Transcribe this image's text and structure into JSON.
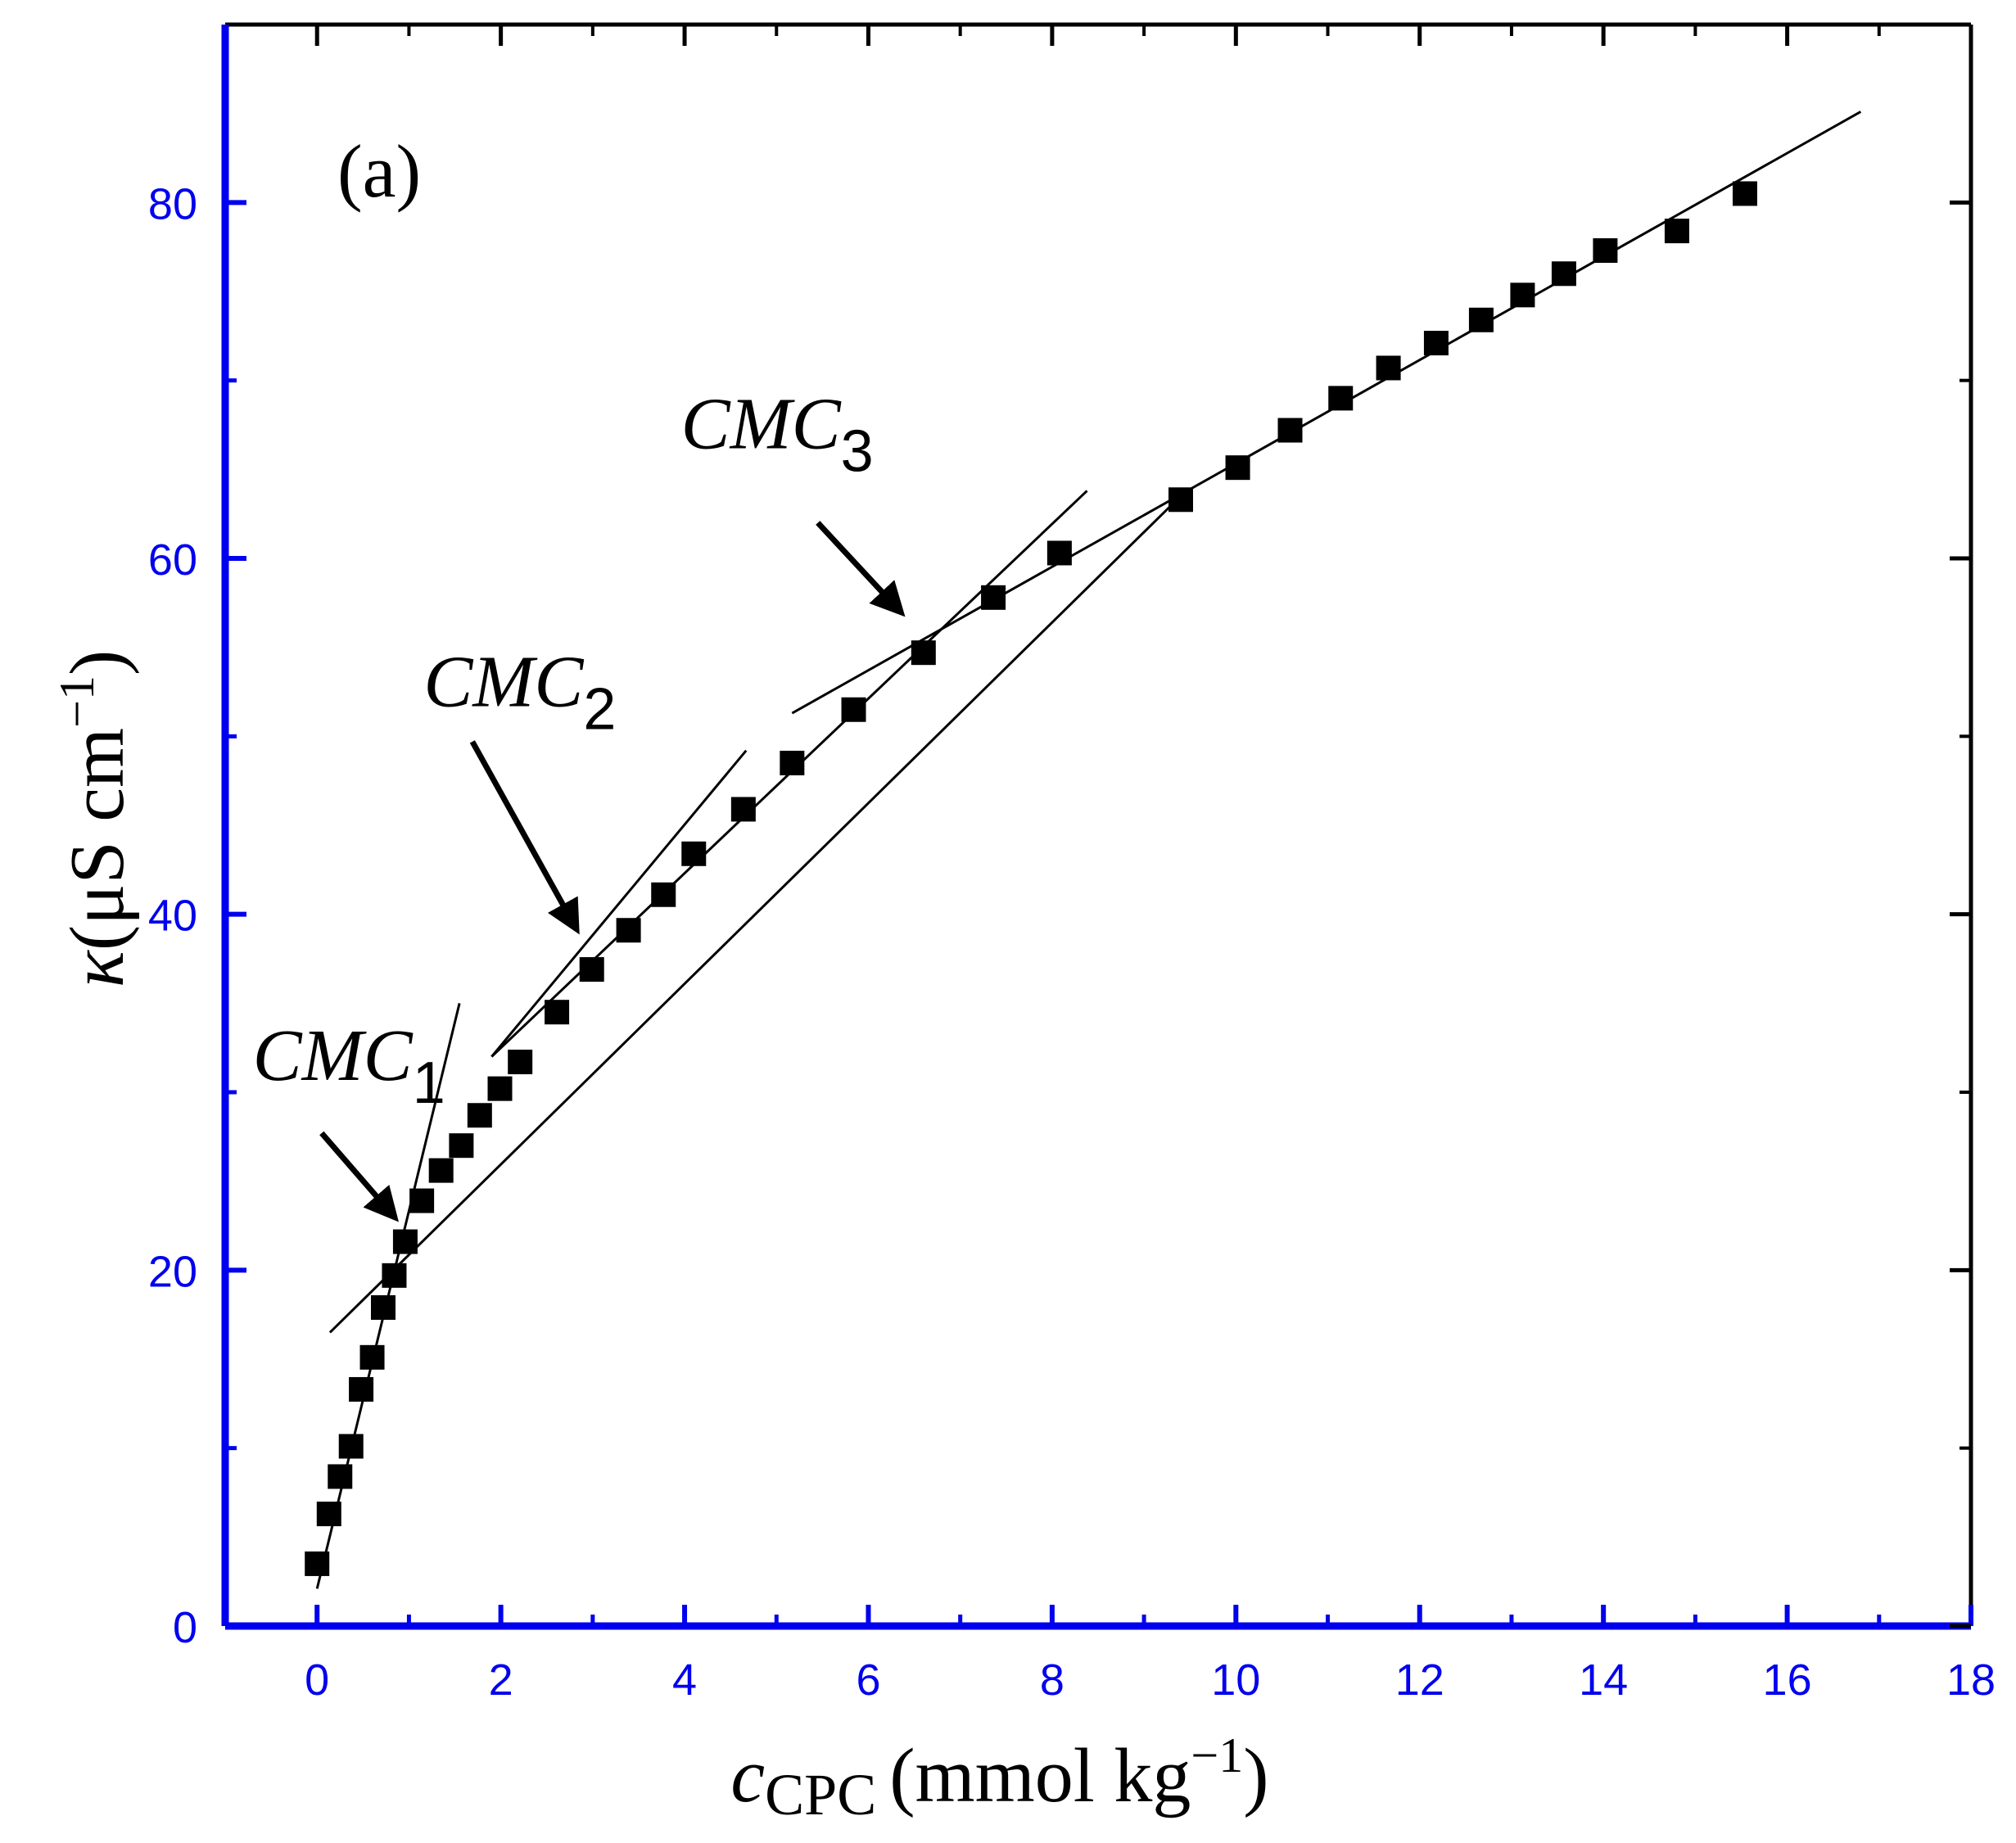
{
  "chart_data": {
    "type": "scatter",
    "panel_label": "(a)",
    "xlabel": {
      "symbol": "c",
      "subscript": "CPC",
      "unit": "(mmol kg",
      "unit_sup": "−1",
      "unit_close": ")"
    },
    "ylabel": {
      "symbol": "κ",
      "unit": "(μS cm",
      "unit_sup": "−1",
      "unit_close": ")"
    },
    "xlim": [
      -1,
      18
    ],
    "ylim": [
      0,
      90
    ],
    "xticks": [
      "0",
      "2",
      "4",
      "6",
      "8",
      "10",
      "12",
      "14",
      "16",
      "18"
    ],
    "yticks": [
      "0",
      "20",
      "40",
      "60",
      "80"
    ],
    "axis_color": "#0000ee",
    "marker_color": "#000000",
    "series": [
      {
        "marker": "square",
        "x": [
          0.0,
          0.13,
          0.25,
          0.37,
          0.48,
          0.6,
          0.72,
          0.84,
          0.96,
          1.14,
          1.35,
          1.57,
          1.77,
          1.99,
          2.21,
          2.61,
          2.99,
          3.39,
          3.77,
          4.1,
          4.64,
          5.17,
          5.84,
          6.6,
          7.36,
          8.08,
          9.4,
          10.02,
          10.59,
          11.14,
          11.66,
          12.18,
          12.67,
          13.12,
          13.57,
          14.02,
          14.8,
          15.54
        ],
        "y": [
          3.5,
          6.3,
          8.4,
          10.1,
          13.3,
          15.1,
          17.9,
          19.7,
          21.6,
          23.9,
          25.6,
          27.0,
          28.7,
          30.2,
          31.7,
          34.5,
          36.9,
          39.1,
          41.1,
          43.4,
          45.9,
          48.5,
          51.5,
          54.7,
          57.8,
          60.3,
          63.3,
          65.1,
          67.2,
          69.0,
          70.7,
          72.1,
          73.4,
          74.8,
          76.0,
          77.3,
          78.4,
          80.5
        ]
      }
    ],
    "fit_lines": [
      {
        "x": [
          0.0,
          1.55
        ],
        "y": [
          2.1,
          35.0
        ]
      },
      {
        "x": [
          0.14,
          9.3
        ],
        "y": [
          16.5,
          63.0
        ]
      },
      {
        "x": [
          1.9,
          4.67
        ],
        "y": [
          32.0,
          49.2
        ]
      },
      {
        "x": [
          1.9,
          8.38
        ],
        "y": [
          32.0,
          63.8
        ]
      },
      {
        "x": [
          5.17,
          16.8
        ],
        "y": [
          51.3,
          85.1
        ]
      }
    ],
    "annotations": [
      {
        "text": "CMC",
        "sub": "1",
        "text_at": [
          -0.7,
          30.7
        ],
        "arrow_from": [
          0.05,
          27.7
        ],
        "arrow_to": [
          0.84,
          23.0
        ]
      },
      {
        "text": "CMC",
        "sub": "2",
        "text_at": [
          1.16,
          51.7
        ],
        "arrow_from": [
          1.69,
          49.7
        ],
        "arrow_to": [
          2.82,
          39.2
        ]
      },
      {
        "text": "CMC",
        "sub": "3",
        "text_at": [
          3.96,
          66.2
        ],
        "arrow_from": [
          5.45,
          62.0
        ],
        "arrow_to": [
          6.35,
          57.0
        ]
      }
    ]
  }
}
